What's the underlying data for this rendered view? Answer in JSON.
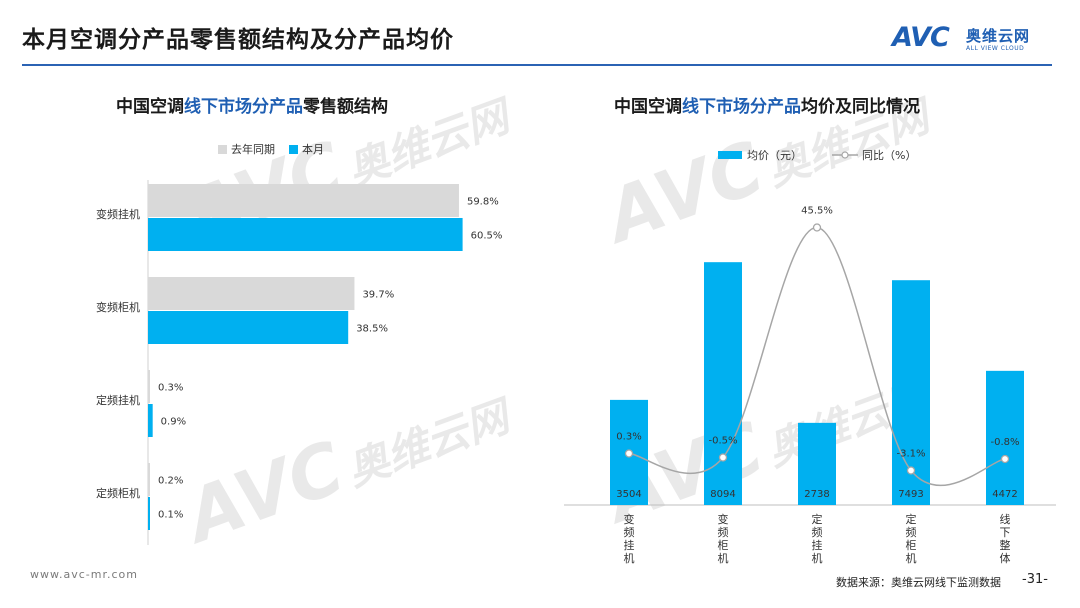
{
  "header": {
    "title": "本月空调分产品零售额结构及分产品均价",
    "logo_mark": "AVC",
    "logo_cn": "奥维云网",
    "logo_en": "ALL VIEW CLOUD"
  },
  "watermark": {
    "mark": "AVC",
    "cn": "奥维云网",
    "en": "ALL VIEW CLOUD"
  },
  "left_chart": {
    "title_pre": "中国空调",
    "title_hl": "线下市场分产品",
    "title_post": "零售额结构",
    "legend": [
      "去年同期",
      "本月"
    ]
  },
  "right_chart": {
    "title_pre": "中国空调",
    "title_hl": "线下市场分产品",
    "title_post": "均价及同比情况",
    "legend": [
      "均价（元）",
      "同比（%）"
    ]
  },
  "colors": {
    "last_year": "#d9d9d9",
    "this_month": "#00b0f0",
    "line": "#a6a6a6",
    "accent": "#1f5fb3"
  },
  "chart_data": [
    {
      "type": "bar",
      "orientation": "horizontal",
      "categories": [
        "变频挂机",
        "变频柜机",
        "定频挂机",
        "定频柜机"
      ],
      "series": [
        {
          "name": "去年同期",
          "values": [
            59.8,
            39.7,
            0.3,
            0.2
          ],
          "labels": [
            "59.8%",
            "39.7%",
            "0.3%",
            "0.2%"
          ]
        },
        {
          "name": "本月",
          "values": [
            60.5,
            38.5,
            0.9,
            0.1
          ],
          "labels": [
            "60.5%",
            "38.5%",
            "0.9%",
            "0.1%"
          ]
        }
      ],
      "xlim": [
        0,
        70
      ],
      "grid": false,
      "legend_position": "top-left"
    },
    {
      "type": "bar",
      "categories": [
        "变频挂机",
        "变频柜机",
        "定频挂机",
        "定频柜机",
        "线下整体"
      ],
      "series": [
        {
          "name": "均价（元）",
          "values": [
            3504,
            8094,
            2738,
            7493,
            4472
          ]
        },
        {
          "name": "同比（%）",
          "type": "line",
          "values": [
            0.3,
            -0.5,
            45.5,
            -3.1,
            -0.8
          ],
          "labels": [
            "0.3%",
            "-0.5%",
            "45.5%",
            "-3.1%",
            "-0.8%"
          ]
        }
      ],
      "ylim": [
        0,
        10000
      ],
      "y2lim": [
        -10,
        50
      ],
      "grid": false,
      "legend_position": "top"
    }
  ],
  "footer": {
    "url": "www.avc-mr.com",
    "source": "数据来源：奥维云网线下监测数据",
    "page": "-31-"
  }
}
